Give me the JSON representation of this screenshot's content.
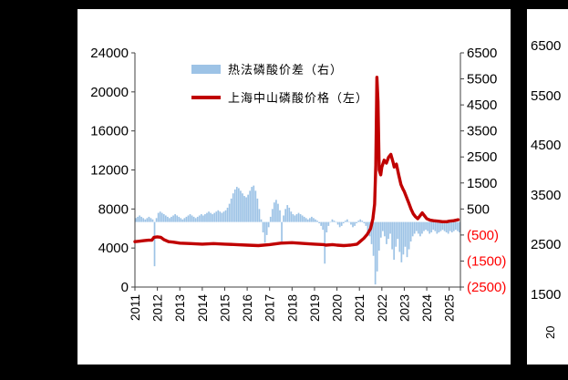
{
  "page": {
    "background": "#000000",
    "panel_background": "#FFFFFF"
  },
  "chart_data": {
    "type": "bar+line",
    "title": "",
    "legend": [
      {
        "label": "热法磷酸价差（右）",
        "type": "bar",
        "axis": "right",
        "color": "#9DC3E6"
      },
      {
        "label": "上海中山磷酸价格（左）",
        "type": "line",
        "axis": "left",
        "color": "#C00000"
      }
    ],
    "left_axis": {
      "min": 0,
      "max": 24000,
      "ticks": [
        "24000",
        "20000",
        "16000",
        "12000",
        "8000",
        "4000",
        "0"
      ],
      "tick_values": [
        24000,
        20000,
        16000,
        12000,
        8000,
        4000,
        0
      ],
      "color": "#000000"
    },
    "right_axis": {
      "min": -2500,
      "max": 6500,
      "ticks": [
        "6500",
        "5500",
        "4500",
        "3500",
        "2500",
        "1500",
        "500",
        "(500)",
        "(1500)",
        "(2500)"
      ],
      "tick_values": [
        6500,
        5500,
        4500,
        3500,
        2500,
        1500,
        500,
        -500,
        -1500,
        -2500
      ],
      "color": "#000000",
      "negative_color": "#FF0000"
    },
    "x_axis": {
      "min": 2011,
      "max": 2025.5,
      "labels": [
        "2011",
        "2012",
        "2013",
        "2014",
        "2015",
        "2016",
        "2017",
        "2018",
        "2019",
        "2020",
        "2021",
        "2022",
        "2023",
        "2024",
        "2025"
      ],
      "label_values": [
        2011,
        2012,
        2013,
        2014,
        2015,
        2016,
        2017,
        2018,
        2019,
        2020,
        2021,
        2022,
        2023,
        2024,
        2025
      ]
    },
    "series": [
      {
        "name": "热法磷酸价差（右）",
        "type": "bar",
        "axis": "right",
        "color": "#9DC3E6",
        "x_start": 2011.0,
        "x_step": 0.0833333,
        "values": [
          150,
          200,
          250,
          200,
          150,
          100,
          150,
          200,
          150,
          100,
          -1700,
          150,
          350,
          400,
          350,
          300,
          250,
          200,
          150,
          200,
          250,
          300,
          250,
          200,
          150,
          100,
          150,
          200,
          250,
          300,
          250,
          200,
          150,
          200,
          250,
          300,
          250,
          300,
          350,
          400,
          350,
          300,
          350,
          400,
          450,
          400,
          350,
          400,
          450,
          550,
          700,
          900,
          1100,
          1250,
          1350,
          1300,
          1200,
          1100,
          1000,
          950,
          1050,
          1200,
          1350,
          1400,
          1200,
          900,
          500,
          100,
          -400,
          -800,
          -500,
          -200,
          200,
          500,
          750,
          850,
          700,
          450,
          -750,
          250,
          500,
          650,
          550,
          400,
          300,
          250,
          300,
          350,
          300,
          250,
          200,
          150,
          100,
          150,
          200,
          150,
          100,
          50,
          -50,
          -150,
          -300,
          -1600,
          -400,
          -150,
          0,
          100,
          50,
          0,
          -100,
          -200,
          -150,
          -50,
          50,
          100,
          0,
          -100,
          -200,
          -150,
          -50,
          50,
          100,
          50,
          -50,
          -150,
          -350,
          -550,
          -850,
          -1300,
          -2400,
          -1900,
          -1100,
          -600,
          -350,
          -550,
          -850,
          -650,
          -450,
          -1050,
          -1450,
          -950,
          -650,
          -1150,
          -1550,
          -1250,
          -950,
          -1350,
          -1050,
          -750,
          -550,
          -450,
          -350,
          -450,
          -550,
          -450,
          -350,
          -300,
          -350,
          -450,
          -400,
          -300,
          -350,
          -450,
          -400,
          -350,
          -300,
          -350,
          -400,
          -450,
          -350,
          -400,
          -350,
          -300,
          -350,
          -400
        ]
      },
      {
        "name": "上海中山磷酸价格（左）",
        "type": "line",
        "axis": "left",
        "color": "#C00000",
        "points": [
          [
            2011.0,
            4650
          ],
          [
            2011.2,
            4700
          ],
          [
            2011.4,
            4750
          ],
          [
            2011.6,
            4800
          ],
          [
            2011.75,
            4800
          ],
          [
            2011.85,
            5100
          ],
          [
            2012.0,
            5150
          ],
          [
            2012.15,
            5100
          ],
          [
            2012.3,
            4850
          ],
          [
            2012.5,
            4650
          ],
          [
            2012.7,
            4600
          ],
          [
            2013.0,
            4500
          ],
          [
            2013.5,
            4450
          ],
          [
            2014.0,
            4400
          ],
          [
            2014.5,
            4450
          ],
          [
            2015.0,
            4400
          ],
          [
            2015.5,
            4350
          ],
          [
            2016.0,
            4300
          ],
          [
            2016.5,
            4250
          ],
          [
            2017.0,
            4350
          ],
          [
            2017.5,
            4500
          ],
          [
            2018.0,
            4550
          ],
          [
            2018.3,
            4500
          ],
          [
            2018.6,
            4450
          ],
          [
            2019.0,
            4400
          ],
          [
            2019.4,
            4350
          ],
          [
            2019.5,
            4300
          ],
          [
            2019.8,
            4350
          ],
          [
            2020.0,
            4300
          ],
          [
            2020.3,
            4250
          ],
          [
            2020.6,
            4300
          ],
          [
            2020.9,
            4400
          ],
          [
            2021.0,
            4600
          ],
          [
            2021.2,
            5000
          ],
          [
            2021.35,
            5400
          ],
          [
            2021.5,
            6000
          ],
          [
            2021.6,
            7000
          ],
          [
            2021.68,
            8500
          ],
          [
            2021.73,
            12500
          ],
          [
            2021.78,
            21500
          ],
          [
            2021.83,
            19000
          ],
          [
            2021.88,
            12000
          ],
          [
            2021.95,
            11500
          ],
          [
            2022.0,
            12300
          ],
          [
            2022.1,
            13000
          ],
          [
            2022.2,
            12700
          ],
          [
            2022.3,
            13300
          ],
          [
            2022.4,
            13600
          ],
          [
            2022.5,
            12800
          ],
          [
            2022.55,
            12300
          ],
          [
            2022.65,
            12600
          ],
          [
            2022.75,
            11500
          ],
          [
            2022.85,
            10500
          ],
          [
            2022.95,
            10000
          ],
          [
            2023.0,
            9800
          ],
          [
            2023.1,
            9200
          ],
          [
            2023.2,
            8600
          ],
          [
            2023.3,
            8000
          ],
          [
            2023.4,
            7500
          ],
          [
            2023.5,
            7200
          ],
          [
            2023.6,
            7000
          ],
          [
            2023.7,
            7300
          ],
          [
            2023.8,
            7600
          ],
          [
            2023.9,
            7300
          ],
          [
            2024.0,
            7000
          ],
          [
            2024.15,
            6850
          ],
          [
            2024.3,
            6800
          ],
          [
            2024.5,
            6750
          ],
          [
            2024.7,
            6700
          ],
          [
            2024.9,
            6700
          ],
          [
            2025.0,
            6750
          ],
          [
            2025.2,
            6800
          ],
          [
            2025.4,
            6900
          ]
        ]
      }
    ]
  },
  "side_panel": {
    "axis_labels": [
      "6500",
      "5500",
      "4500",
      "3500",
      "2500",
      "1500"
    ],
    "x_label_partial": "20"
  }
}
